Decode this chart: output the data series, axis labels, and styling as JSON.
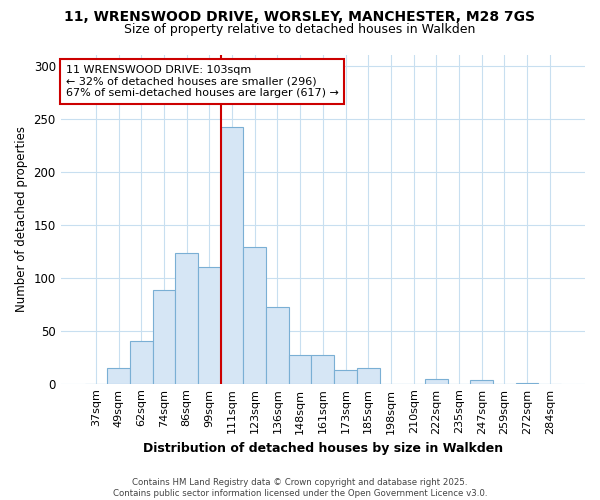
{
  "title_line1": "11, WRENSWOOD DRIVE, WORSLEY, MANCHESTER, M28 7GS",
  "title_line2": "Size of property relative to detached houses in Walkden",
  "xlabel": "Distribution of detached houses by size in Walkden",
  "ylabel": "Number of detached properties",
  "bar_labels": [
    "37sqm",
    "49sqm",
    "62sqm",
    "74sqm",
    "86sqm",
    "99sqm",
    "111sqm",
    "123sqm",
    "136sqm",
    "148sqm",
    "161sqm",
    "173sqm",
    "185sqm",
    "198sqm",
    "210sqm",
    "222sqm",
    "235sqm",
    "247sqm",
    "259sqm",
    "272sqm",
    "284sqm"
  ],
  "bar_values": [
    0,
    15,
    40,
    88,
    123,
    110,
    242,
    129,
    72,
    27,
    27,
    13,
    15,
    0,
    0,
    4,
    0,
    3,
    0,
    1,
    0
  ],
  "bar_color": "#d6e6f5",
  "bar_edge_color": "#7aafd4",
  "red_line_index": 6,
  "property_label": "11 WRENSWOOD DRIVE: 103sqm",
  "annotation_line2": "← 32% of detached houses are smaller (296)",
  "annotation_line3": "67% of semi-detached houses are larger (617) →",
  "annotation_box_color": "#ffffff",
  "annotation_box_edge_color": "#cc0000",
  "footer_line1": "Contains HM Land Registry data © Crown copyright and database right 2025.",
  "footer_line2": "Contains public sector information licensed under the Open Government Licence v3.0.",
  "ylim": [
    0,
    310
  ],
  "yticks": [
    0,
    50,
    100,
    150,
    200,
    250,
    300
  ],
  "background_color": "#ffffff",
  "grid_color": "#c8dff0"
}
